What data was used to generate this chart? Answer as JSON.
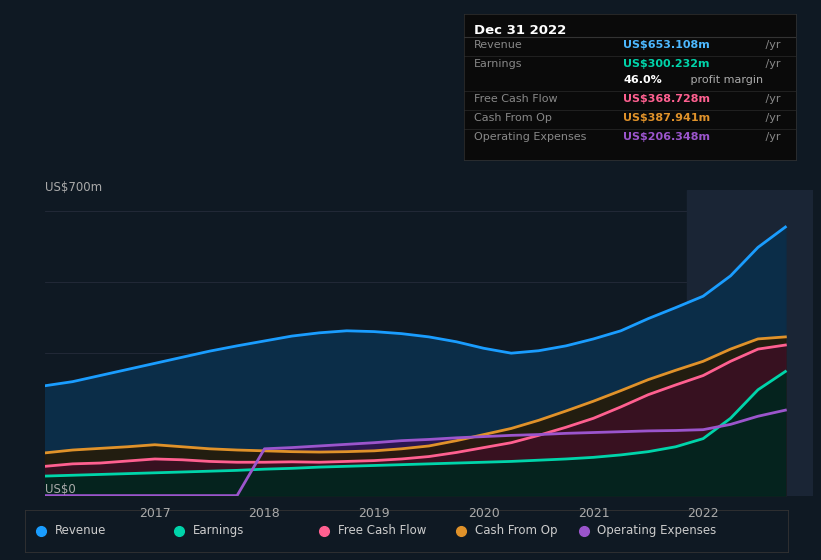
{
  "bg_color": "#0f1923",
  "chart_bg": "#0f1923",
  "ylabel_top": "US$700m",
  "ylabel_bottom": "US$0",
  "x_labels": [
    "2017",
    "2018",
    "2019",
    "2020",
    "2021",
    "2022"
  ],
  "x_range": [
    0.0,
    7.0
  ],
  "y_range": [
    0,
    750
  ],
  "grid_lines": [
    0,
    175,
    350,
    525,
    700
  ],
  "series": {
    "revenue": {
      "x": [
        0.0,
        0.25,
        0.5,
        0.75,
        1.0,
        1.25,
        1.5,
        1.75,
        2.0,
        2.25,
        2.5,
        2.75,
        3.0,
        3.25,
        3.5,
        3.75,
        4.0,
        4.25,
        4.5,
        4.75,
        5.0,
        5.25,
        5.5,
        5.75,
        6.0,
        6.25,
        6.5,
        6.75
      ],
      "y": [
        270,
        280,
        295,
        310,
        325,
        340,
        355,
        368,
        380,
        392,
        400,
        405,
        403,
        398,
        390,
        378,
        362,
        350,
        356,
        368,
        385,
        405,
        435,
        462,
        490,
        540,
        610,
        660
      ],
      "color": "#1a9dff",
      "fill_color": "#0a2a45",
      "linewidth": 2.0
    },
    "earnings": {
      "x": [
        0.0,
        0.25,
        0.5,
        0.75,
        1.0,
        1.25,
        1.5,
        1.75,
        2.0,
        2.25,
        2.5,
        2.75,
        3.0,
        3.25,
        3.5,
        3.75,
        4.0,
        4.25,
        4.5,
        4.75,
        5.0,
        5.25,
        5.5,
        5.75,
        6.0,
        6.25,
        6.5,
        6.75
      ],
      "y": [
        48,
        50,
        52,
        54,
        56,
        58,
        60,
        62,
        65,
        67,
        70,
        72,
        74,
        76,
        78,
        80,
        82,
        84,
        87,
        90,
        94,
        100,
        108,
        120,
        140,
        190,
        260,
        305
      ],
      "color": "#00d4aa",
      "fill_color": "#00332a",
      "linewidth": 2.0
    },
    "free_cash_flow": {
      "x": [
        0.0,
        0.25,
        0.5,
        0.75,
        1.0,
        1.25,
        1.5,
        1.75,
        2.0,
        2.25,
        2.5,
        2.75,
        3.0,
        3.25,
        3.5,
        3.75,
        4.0,
        4.25,
        4.5,
        4.75,
        5.0,
        5.25,
        5.5,
        5.75,
        6.0,
        6.25,
        6.5,
        6.75
      ],
      "y": [
        72,
        78,
        80,
        85,
        90,
        88,
        84,
        82,
        82,
        83,
        82,
        84,
        86,
        90,
        96,
        106,
        118,
        130,
        148,
        168,
        190,
        218,
        248,
        272,
        295,
        330,
        360,
        370
      ],
      "color": "#ff6090",
      "fill_color": "#4a1030",
      "linewidth": 2.0
    },
    "cash_from_op": {
      "x": [
        0.0,
        0.25,
        0.5,
        0.75,
        1.0,
        1.25,
        1.5,
        1.75,
        2.0,
        2.25,
        2.5,
        2.75,
        3.0,
        3.25,
        3.5,
        3.75,
        4.0,
        4.25,
        4.5,
        4.75,
        5.0,
        5.25,
        5.5,
        5.75,
        6.0,
        6.25,
        6.5,
        6.75
      ],
      "y": [
        105,
        112,
        116,
        120,
        125,
        120,
        115,
        112,
        110,
        108,
        107,
        108,
        110,
        115,
        122,
        135,
        150,
        165,
        185,
        208,
        232,
        258,
        285,
        308,
        330,
        360,
        385,
        390
      ],
      "color": "#e0922a",
      "fill_color": "#3a2500",
      "linewidth": 2.0
    },
    "operating_expenses": {
      "x": [
        0.0,
        0.25,
        0.5,
        0.75,
        1.0,
        1.25,
        1.5,
        1.75,
        2.0,
        2.25,
        2.5,
        2.75,
        3.0,
        3.25,
        3.5,
        3.75,
        4.0,
        4.25,
        4.5,
        4.75,
        5.0,
        5.25,
        5.5,
        5.75,
        6.0,
        6.25,
        6.5,
        6.75
      ],
      "y": [
        0,
        0,
        0,
        0,
        0,
        0,
        0,
        0,
        115,
        118,
        122,
        126,
        130,
        135,
        138,
        142,
        145,
        148,
        150,
        153,
        155,
        157,
        159,
        160,
        162,
        175,
        195,
        210
      ],
      "color": "#9b55cc",
      "fill_color": "#3a1a5a",
      "linewidth": 2.0
    }
  },
  "highlight_x_start": 5.85,
  "highlight_x_end": 7.0,
  "highlight_color": "#1a2535",
  "legend": [
    {
      "label": "Revenue",
      "color": "#1a9dff"
    },
    {
      "label": "Earnings",
      "color": "#00d4aa"
    },
    {
      "label": "Free Cash Flow",
      "color": "#ff6090"
    },
    {
      "label": "Cash From Op",
      "color": "#e0922a"
    },
    {
      "label": "Operating Expenses",
      "color": "#9b55cc"
    }
  ],
  "info_box": {
    "date": "Dec 31 2022",
    "date_color": "#ffffff",
    "bg_color": "#0a0a0a",
    "border_color": "#333333",
    "rows": [
      {
        "label": "Revenue",
        "label_color": "#888888",
        "value": "US$653.108m",
        "value_color": "#4db8ff",
        "suffix": " /yr",
        "suffix_color": "#888888",
        "divider": true
      },
      {
        "label": "Earnings",
        "label_color": "#888888",
        "value": "US$300.232m",
        "value_color": "#00d4aa",
        "suffix": " /yr",
        "suffix_color": "#888888",
        "divider": false
      },
      {
        "label": "",
        "label_color": "#888888",
        "value": "46.0%",
        "value_color": "#ffffff",
        "suffix": " profit margin",
        "suffix_color": "#aaaaaa",
        "divider": true,
        "value_bold": true
      },
      {
        "label": "Free Cash Flow",
        "label_color": "#888888",
        "value": "US$368.728m",
        "value_color": "#ff6090",
        "suffix": " /yr",
        "suffix_color": "#888888",
        "divider": true
      },
      {
        "label": "Cash From Op",
        "label_color": "#888888",
        "value": "US$387.941m",
        "value_color": "#e0922a",
        "suffix": " /yr",
        "suffix_color": "#888888",
        "divider": true
      },
      {
        "label": "Operating Expenses",
        "label_color": "#888888",
        "value": "US$206.348m",
        "value_color": "#9b55cc",
        "suffix": " /yr",
        "suffix_color": "#888888",
        "divider": true
      }
    ]
  }
}
